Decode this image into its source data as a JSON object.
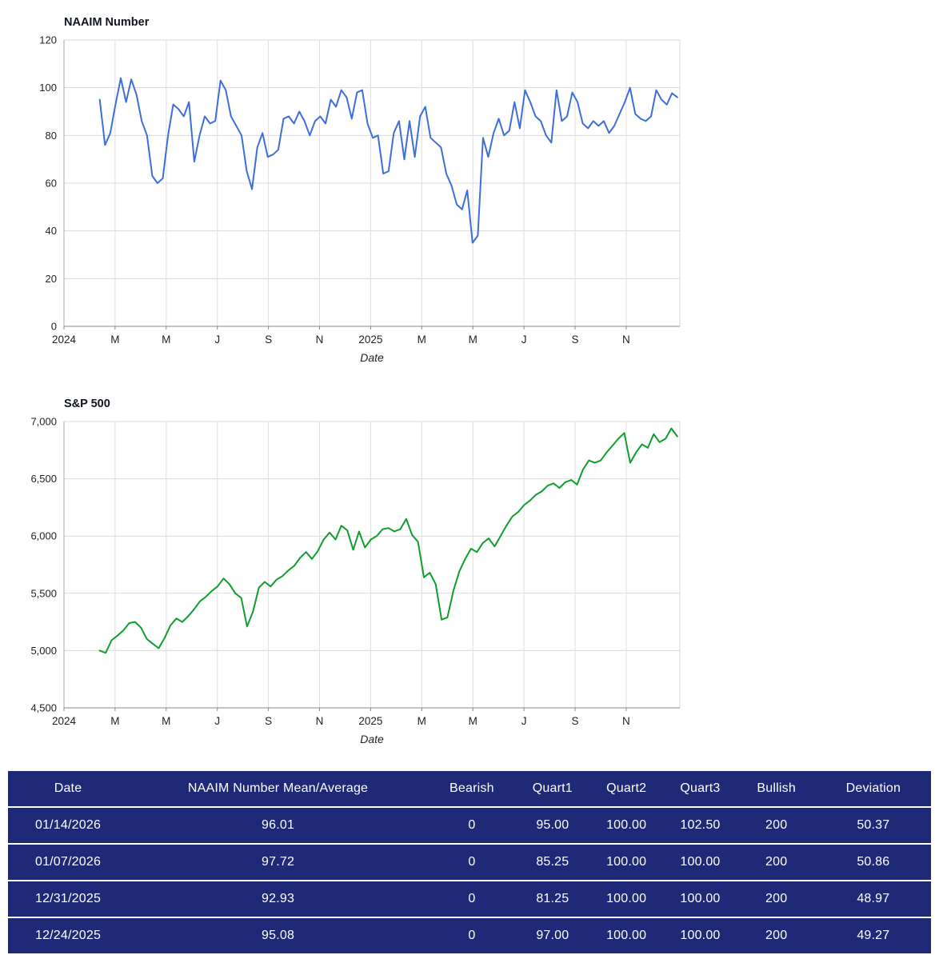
{
  "page": {
    "background": "#ffffff"
  },
  "chart_data": [
    {
      "type": "line",
      "name": "naaim-number",
      "title": "NAAIM Number",
      "xlabel": "Date",
      "line_color": "#3d6edc",
      "grid": true,
      "ylim": [
        0,
        120
      ],
      "yticks": [
        0,
        20,
        40,
        60,
        80,
        100,
        120
      ],
      "ytick_labels": [
        "0",
        "20",
        "40",
        "60",
        "80",
        "100",
        "120"
      ],
      "xlim": [
        0,
        24.1
      ],
      "xticks": [
        0,
        2,
        4,
        6,
        8,
        10,
        12,
        14,
        16,
        18,
        20,
        22
      ],
      "xtick_labels": [
        "2024",
        "M",
        "M",
        "J",
        "S",
        "N",
        "2025",
        "M",
        "M",
        "J",
        "S",
        "N"
      ],
      "x_start": 1.4,
      "x_end": 24.0,
      "values": [
        95,
        76,
        81,
        93,
        104,
        94,
        103.5,
        97,
        86,
        80,
        63,
        60,
        62,
        80,
        93,
        91,
        88,
        94,
        69,
        80,
        88,
        85,
        86,
        103,
        99,
        88,
        84,
        80,
        65,
        57.5,
        75,
        81,
        71,
        72,
        74,
        87,
        88,
        85,
        90,
        86,
        80,
        86,
        88,
        85,
        95,
        92,
        99,
        96,
        87,
        98,
        99,
        85,
        79,
        80,
        64,
        65,
        81,
        86,
        70,
        86,
        71,
        88,
        92,
        79,
        77,
        75,
        64,
        59,
        51,
        49,
        57,
        35,
        38,
        79,
        71,
        81,
        87,
        80,
        82,
        94,
        83,
        99,
        94,
        88,
        86,
        80,
        77,
        99,
        86,
        88,
        98,
        94,
        85,
        83,
        86,
        84,
        86,
        81,
        84,
        89,
        94,
        100,
        89,
        87,
        86,
        88,
        99,
        95,
        92.93,
        97.72,
        96.01
      ]
    },
    {
      "type": "line",
      "name": "sp500",
      "title": "S&P 500",
      "xlabel": "Date",
      "line_color": "#0f9e2c",
      "grid": true,
      "ylim": [
        4500,
        7000
      ],
      "yticks": [
        4500,
        5000,
        5500,
        6000,
        6500,
        7000
      ],
      "ytick_labels": [
        "4,500",
        "5,000",
        "5,500",
        "6,000",
        "6,500",
        "7,000"
      ],
      "xlim": [
        0,
        24.1
      ],
      "xticks": [
        0,
        2,
        4,
        6,
        8,
        10,
        12,
        14,
        16,
        18,
        20,
        22
      ],
      "xtick_labels": [
        "2024",
        "M",
        "M",
        "J",
        "S",
        "N",
        "2025",
        "M",
        "M",
        "J",
        "S",
        "N"
      ],
      "x_start": 1.4,
      "x_end": 24.0,
      "values": [
        5000,
        4980,
        5090,
        5130,
        5175,
        5240,
        5250,
        5200,
        5100,
        5060,
        5020,
        5110,
        5220,
        5280,
        5250,
        5300,
        5360,
        5430,
        5470,
        5520,
        5560,
        5630,
        5580,
        5500,
        5460,
        5210,
        5340,
        5550,
        5600,
        5560,
        5620,
        5650,
        5700,
        5740,
        5810,
        5860,
        5800,
        5870,
        5970,
        6030,
        5970,
        6090,
        6050,
        5880,
        6040,
        5900,
        5970,
        6000,
        6060,
        6070,
        6040,
        6060,
        6150,
        6010,
        5950,
        5640,
        5680,
        5580,
        5270,
        5290,
        5520,
        5690,
        5800,
        5890,
        5860,
        5940,
        5980,
        5910,
        6000,
        6090,
        6170,
        6210,
        6270,
        6310,
        6360,
        6390,
        6440,
        6460,
        6420,
        6470,
        6490,
        6450,
        6580,
        6660,
        6640,
        6660,
        6730,
        6790,
        6850,
        6900,
        6640,
        6730,
        6800,
        6770,
        6890,
        6820,
        6850,
        6940,
        6870
      ]
    }
  ],
  "table": {
    "bg_color": "#1e2a78",
    "text_color": "#ffffff",
    "columns": [
      "Date",
      "NAAIM Number Mean/Average",
      "Bearish",
      "Quart1",
      "Quart2",
      "Quart3",
      "Bullish",
      "Deviation"
    ],
    "col_widths": [
      "13%",
      "32.5%",
      "9.5%",
      "8%",
      "8%",
      "8%",
      "8.5%",
      "12.5%"
    ],
    "rows": [
      [
        "01/14/2026",
        "96.01",
        "0",
        "95.00",
        "100.00",
        "102.50",
        "200",
        "50.37"
      ],
      [
        "01/07/2026",
        "97.72",
        "0",
        "85.25",
        "100.00",
        "100.00",
        "200",
        "50.86"
      ],
      [
        "12/31/2025",
        "92.93",
        "0",
        "81.25",
        "100.00",
        "100.00",
        "200",
        "48.97"
      ],
      [
        "12/24/2025",
        "95.08",
        "0",
        "97.00",
        "100.00",
        "100.00",
        "200",
        "49.27"
      ]
    ]
  }
}
